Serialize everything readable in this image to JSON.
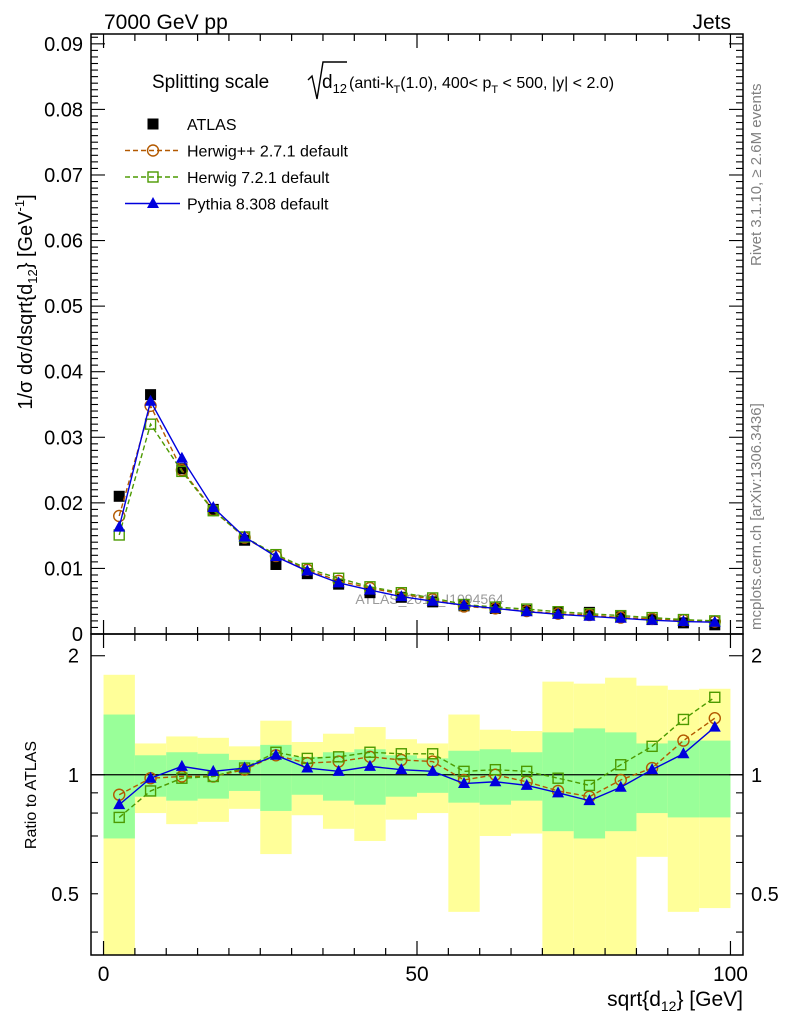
{
  "header": {
    "energy_label": "7000 GeV pp",
    "process_label": "Jets"
  },
  "side": {
    "rivet_label": "Rivet 3.1.10, ≥ 2.6M events",
    "mcplots_label": "mcplots.cern.ch [arXiv:1306.3436]"
  },
  "chart_data": {
    "type": "line",
    "title": "Splitting scale √(d₁₂) (anti-k_T(1.0), 400< p_T < 500, |y| < 2.0)",
    "title_parts": {
      "prefix": "Splitting scale",
      "var": "d",
      "var_sub": "12",
      "suffix_a": " (anti-k",
      "suffix_a_sub": "T",
      "suffix_b": "(1.0), 400< p",
      "suffix_b_sub": "T",
      "suffix_c": " < 500, |y| < 2.0)"
    },
    "watermark": "ATLAS_2013_I1094564",
    "xlabel": "sqrt{d",
    "xlabel_sub": "12",
    "xlabel_tail": "} [GeV]",
    "ylabel_main": "1/σ dσ/dsqrt{d",
    "ylabel_main_sub": "12",
    "ylabel_main_mid": "} [GeV",
    "ylabel_main_sup": "-1",
    "ylabel_main_tail": "]",
    "ylabel_ratio": "Ratio to ATLAS",
    "xlim": [
      -2,
      102
    ],
    "ylim_main": [
      0,
      0.0915
    ],
    "ylim_ratio": [
      0.35,
      2.27
    ],
    "x_ticks": [
      0,
      50,
      100
    ],
    "y_ticks_main": [
      0,
      0.01,
      0.02,
      0.03,
      0.04,
      0.05,
      0.06,
      0.07,
      0.08,
      0.09
    ],
    "y_ticks_ratio": [
      0.5,
      1,
      2
    ],
    "legend_position": "top-left",
    "bin_edges": [
      0,
      5,
      10,
      15,
      20,
      25,
      30,
      35,
      40,
      45,
      50,
      55,
      60,
      65,
      70,
      75,
      80,
      85,
      90,
      95,
      100
    ],
    "x": [
      2.5,
      7.5,
      12.5,
      17.5,
      22.5,
      27.5,
      32.5,
      37.5,
      42.5,
      47.5,
      52.5,
      57.5,
      62.5,
      67.5,
      72.5,
      77.5,
      82.5,
      87.5,
      92.5,
      97.5
    ],
    "ratio_band_green": [
      [
        0.69,
        1.42
      ],
      [
        0.88,
        1.12
      ],
      [
        0.86,
        1.14
      ],
      [
        0.87,
        1.13
      ],
      [
        0.91,
        1.09
      ],
      [
        0.81,
        1.19
      ],
      [
        0.89,
        1.11
      ],
      [
        0.86,
        1.14
      ],
      [
        0.84,
        1.16
      ],
      [
        0.88,
        1.12
      ],
      [
        0.9,
        1.1
      ],
      [
        0.85,
        1.15
      ],
      [
        0.84,
        1.16
      ],
      [
        0.86,
        1.14
      ],
      [
        0.72,
        1.28
      ],
      [
        0.69,
        1.31
      ],
      [
        0.72,
        1.28
      ],
      [
        0.8,
        1.2
      ],
      [
        0.78,
        1.22
      ],
      [
        0.78,
        1.22
      ]
    ],
    "ratio_band_yellow": [
      [
        0.35,
        1.79
      ],
      [
        0.8,
        1.2
      ],
      [
        0.75,
        1.25
      ],
      [
        0.76,
        1.24
      ],
      [
        0.82,
        1.18
      ],
      [
        0.63,
        1.37
      ],
      [
        0.79,
        1.21
      ],
      [
        0.73,
        1.27
      ],
      [
        0.68,
        1.32
      ],
      [
        0.77,
        1.23
      ],
      [
        0.8,
        1.2
      ],
      [
        0.45,
        1.42
      ],
      [
        0.7,
        1.3
      ],
      [
        0.71,
        1.29
      ],
      [
        0.35,
        1.72
      ],
      [
        0.35,
        1.7
      ],
      [
        0.35,
        1.76
      ],
      [
        0.62,
        1.68
      ],
      [
        0.45,
        1.64
      ],
      [
        0.46,
        1.65
      ]
    ],
    "series": [
      {
        "name": "ATLAS",
        "color": "#000000",
        "marker": "square-filled",
        "values": [
          0.021,
          0.0365,
          0.0252,
          0.019,
          0.0143,
          0.0106,
          0.0092,
          0.0076,
          0.0063,
          0.0056,
          0.0049,
          0.0043,
          0.0039,
          0.0036,
          0.0034,
          0.0033,
          0.0026,
          0.0022,
          0.0017,
          0.0014
        ],
        "ratio": [
          1.0,
          1.0,
          1.0,
          1.0,
          1.0,
          1.0,
          1.0,
          1.0,
          1.0,
          1.0,
          1.0,
          1.0,
          1.0,
          1.0,
          1.0,
          1.0,
          1.0,
          1.0,
          1.0,
          1.0
        ]
      },
      {
        "name": "Herwig++ 2.7.1 default",
        "color": "#b35900",
        "marker": "circle-open",
        "dashed": true,
        "values": [
          0.018,
          0.0348,
          0.025,
          0.0189,
          0.0147,
          0.0119,
          0.0098,
          0.0081,
          0.007,
          0.0061,
          0.0053,
          0.0042,
          0.0039,
          0.0035,
          0.0031,
          0.0029,
          0.0025,
          0.0023,
          0.0021,
          0.0019
        ],
        "ratio": [
          0.89,
          0.98,
          0.99,
          0.99,
          1.03,
          1.12,
          1.07,
          1.08,
          1.11,
          1.09,
          1.08,
          0.97,
          1.0,
          0.96,
          0.91,
          0.88,
          0.97,
          1.04,
          1.22,
          1.39
        ]
      },
      {
        "name": "Herwig 7.2.1 default",
        "color": "#4c9a00",
        "marker": "square-open",
        "dashed": true,
        "values": [
          0.0151,
          0.032,
          0.0248,
          0.0188,
          0.0148,
          0.0121,
          0.01,
          0.0085,
          0.0072,
          0.0063,
          0.0055,
          0.0045,
          0.0041,
          0.0038,
          0.0034,
          0.0031,
          0.0028,
          0.0025,
          0.0022,
          0.002
        ],
        "ratio": [
          0.78,
          0.91,
          0.98,
          0.99,
          1.04,
          1.14,
          1.1,
          1.11,
          1.14,
          1.13,
          1.13,
          1.02,
          1.03,
          1.02,
          0.98,
          0.94,
          1.06,
          1.18,
          1.38,
          1.57
        ]
      },
      {
        "name": "Pythia 8.308 default",
        "color": "#0000dd",
        "marker": "triangle-filled",
        "dashed": false,
        "values": [
          0.0163,
          0.0355,
          0.0268,
          0.0193,
          0.0148,
          0.0118,
          0.0096,
          0.0078,
          0.0067,
          0.0057,
          0.005,
          0.0044,
          0.0039,
          0.0034,
          0.003,
          0.0027,
          0.0024,
          0.0021,
          0.0019,
          0.0018
        ],
        "ratio": [
          0.84,
          0.98,
          1.05,
          1.02,
          1.04,
          1.12,
          1.04,
          1.02,
          1.05,
          1.03,
          1.02,
          0.95,
          0.96,
          0.94,
          0.9,
          0.86,
          0.93,
          1.03,
          1.13,
          1.32
        ]
      }
    ]
  }
}
